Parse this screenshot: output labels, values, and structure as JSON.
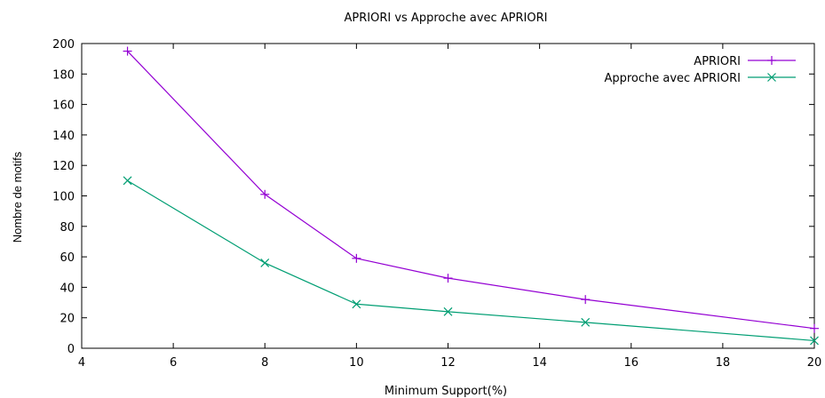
{
  "chart_data": {
    "type": "line",
    "title": "APRIORI vs Approche avec APRIORI",
    "xlabel": "Minimum Support(%)",
    "ylabel": "Nombre de motifs",
    "xlim": [
      4,
      20
    ],
    "ylim": [
      0,
      200
    ],
    "x_ticks": [
      4,
      6,
      8,
      10,
      12,
      14,
      16,
      18,
      20
    ],
    "y_ticks": [
      0,
      20,
      40,
      60,
      80,
      100,
      120,
      140,
      160,
      180,
      200
    ],
    "grid": false,
    "legend_position": "top-right",
    "series": [
      {
        "name": "APRIORI",
        "color": "#9400d3",
        "marker": "plus",
        "x": [
          5,
          8,
          10,
          12,
          15,
          20
        ],
        "y": [
          195,
          101,
          59,
          46,
          32,
          13
        ]
      },
      {
        "name": "Approche avec APRIORI",
        "color": "#009e73",
        "marker": "cross",
        "x": [
          5,
          8,
          10,
          12,
          15,
          20
        ],
        "y": [
          110,
          56,
          29,
          24,
          17,
          5
        ]
      }
    ]
  }
}
